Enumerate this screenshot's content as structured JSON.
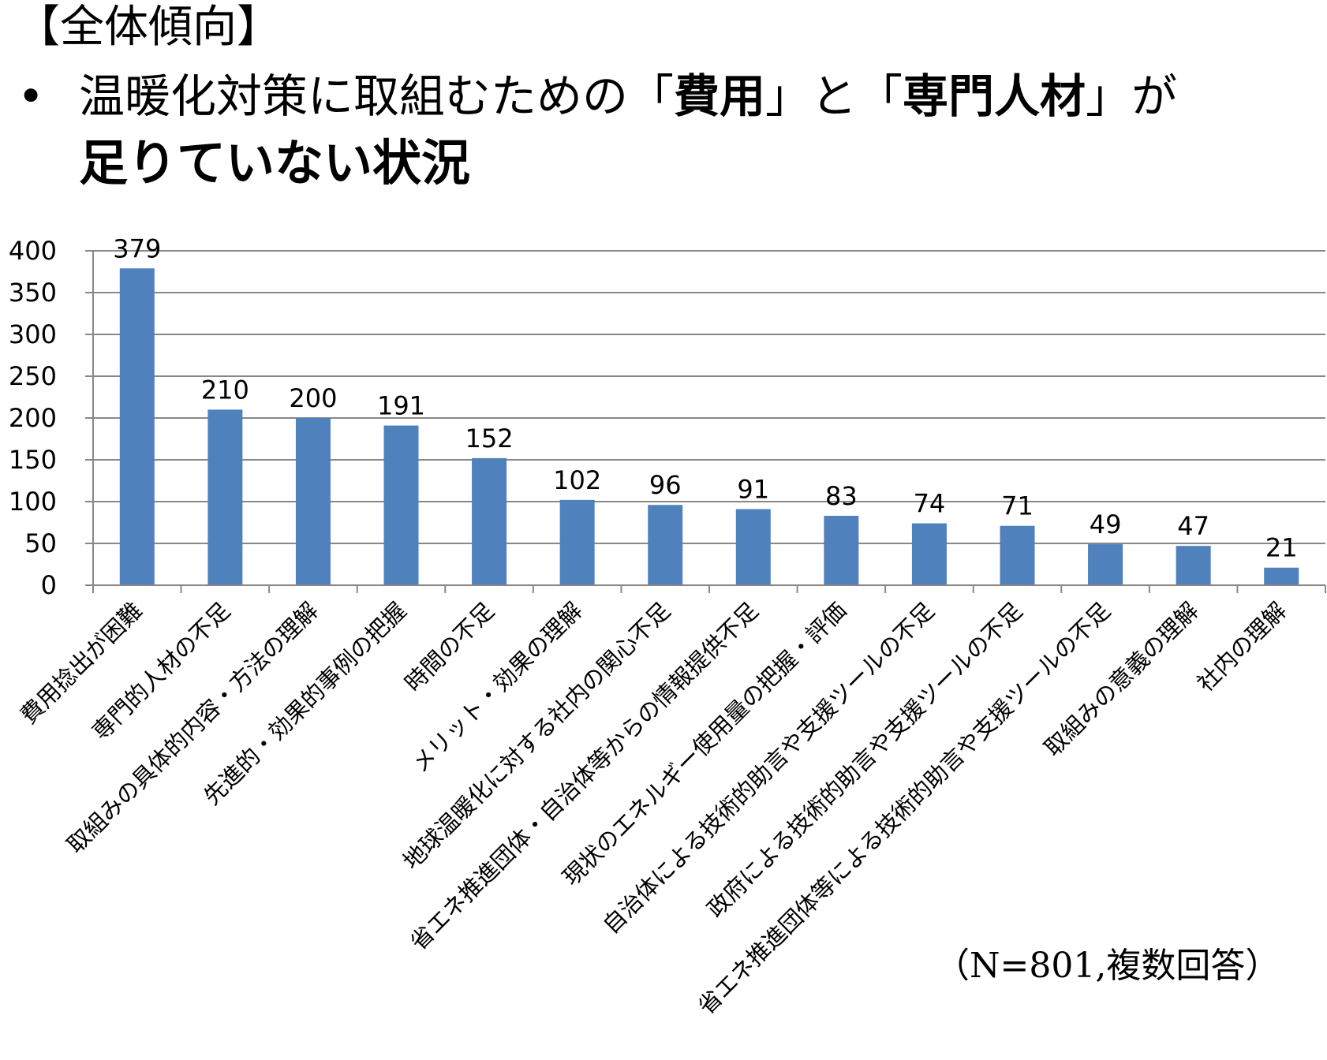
{
  "heading": "【全体傾向】",
  "bullet": {
    "glyph": "•",
    "part1": "温暖化対策に取組むための「",
    "bold1": "費用",
    "part2": "」と「",
    "bold2": "専門人材",
    "part3": "」が",
    "line2": "足りていない状況"
  },
  "note": "（N=801,複数回答）",
  "chart_data": {
    "type": "bar",
    "categories": [
      "費用捻出が困難",
      "専門的人材の不足",
      "取組みの具体的内容・方法の理解",
      "先進的・効果的事例の把握",
      "時間の不足",
      "メリット・効果の理解",
      "地球温暖化に対する社内の関心不足",
      "省エネ推進団体・自治体等からの情報提供不足",
      "現状のエネルギー使用量の把握・評価",
      "自治体による技術的助言や支援ツールの不足",
      "政府による技術的助言や支援ツールの不足",
      "省エネ推進団体等による技術的助言や支援ツールの不足",
      "取組みの意義の理解",
      "社内の理解"
    ],
    "values": [
      379,
      210,
      200,
      191,
      152,
      102,
      96,
      91,
      83,
      74,
      71,
      49,
      47,
      21
    ],
    "data_labels": [
      "379",
      "210",
      "200",
      "191",
      "152",
      "102",
      "96",
      "91",
      "83",
      "74",
      "71",
      "49",
      "47",
      "21"
    ],
    "yticks": [
      "0",
      "50",
      "100",
      "150",
      "200",
      "250",
      "300",
      "350",
      "400"
    ],
    "ylim": [
      0,
      400
    ],
    "grid": true,
    "bar_color": "#4F81BD",
    "grid_color": "#888888"
  }
}
